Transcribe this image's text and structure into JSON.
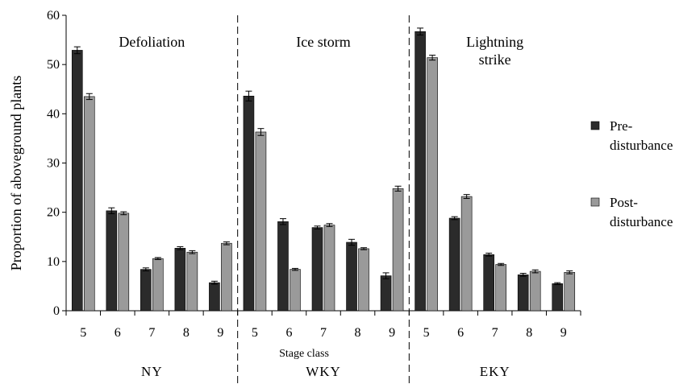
{
  "chart_data": {
    "type": "bar",
    "ylabel": "Proportion of aboveground plants",
    "xlabel": "Stage class",
    "ylim": [
      0,
      60
    ],
    "yticks": [
      0,
      10,
      20,
      30,
      40,
      50,
      60
    ],
    "grid": false,
    "legend_position": "right",
    "colors": {
      "Pre-disturbance": "#2b2b2b",
      "Post-disturbance": "#9a9a9a"
    },
    "legend": [
      {
        "name": "Pre-disturbance",
        "lines": [
          "Pre-",
          "disturbance"
        ]
      },
      {
        "name": "Post-disturbance",
        "lines": [
          "Post-",
          "disturbance"
        ]
      }
    ],
    "panels": [
      {
        "site": "NY",
        "disturbance_lines": [
          "Defoliation"
        ],
        "categories": [
          "5",
          "6",
          "7",
          "8",
          "9"
        ],
        "series": [
          {
            "name": "Pre-disturbance",
            "values": [
              52.9,
              20.3,
              8.4,
              12.7,
              5.7
            ],
            "errors": [
              0.7,
              0.6,
              0.3,
              0.3,
              0.3
            ]
          },
          {
            "name": "Post-disturbance",
            "values": [
              43.5,
              19.8,
              10.6,
              11.9,
              13.7
            ],
            "errors": [
              0.6,
              0.3,
              0.2,
              0.3,
              0.3
            ]
          }
        ]
      },
      {
        "site": "WKY",
        "disturbance_lines": [
          "Ice storm"
        ],
        "categories": [
          "5",
          "6",
          "7",
          "8",
          "9"
        ],
        "series": [
          {
            "name": "Pre-disturbance",
            "values": [
              43.6,
              18.1,
              16.9,
              13.9,
              7.1
            ],
            "errors": [
              1.0,
              0.6,
              0.3,
              0.6,
              0.6
            ]
          },
          {
            "name": "Post-disturbance",
            "values": [
              36.3,
              8.4,
              17.4,
              12.6,
              24.8
            ],
            "errors": [
              0.7,
              0.2,
              0.3,
              0.2,
              0.5
            ]
          }
        ]
      },
      {
        "site": "EKY",
        "disturbance_lines": [
          "Lightning",
          "strike"
        ],
        "categories": [
          "5",
          "6",
          "7",
          "8",
          "9"
        ],
        "series": [
          {
            "name": "Pre-disturbance",
            "values": [
              56.7,
              18.8,
              11.4,
              7.3,
              5.5
            ],
            "errors": [
              0.7,
              0.3,
              0.3,
              0.3,
              0.2
            ]
          },
          {
            "name": "Post-disturbance",
            "values": [
              51.4,
              23.2,
              9.4,
              8.0,
              7.8
            ],
            "errors": [
              0.5,
              0.4,
              0.2,
              0.3,
              0.3
            ]
          }
        ]
      }
    ]
  }
}
